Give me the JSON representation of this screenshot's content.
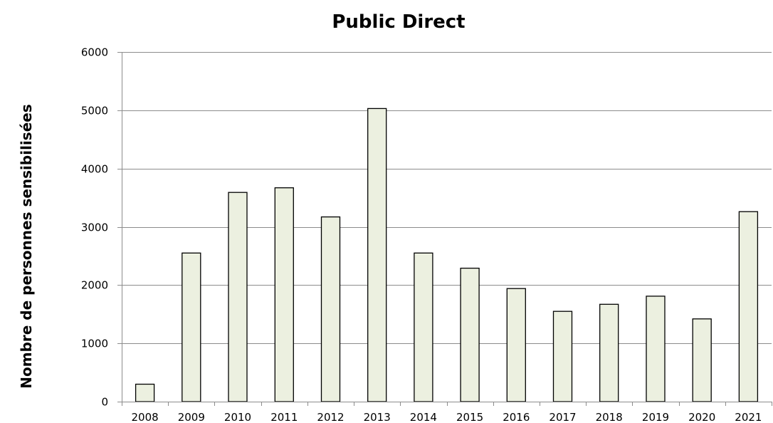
{
  "chart_data": {
    "type": "bar",
    "title": "Public Direct",
    "xlabel": "",
    "ylabel": "Nombre de personnes sensibilisées",
    "categories": [
      "2008",
      "2009",
      "2010",
      "2011",
      "2012",
      "2013",
      "2014",
      "2015",
      "2016",
      "2017",
      "2018",
      "2019",
      "2020",
      "2021"
    ],
    "values": [
      300,
      2550,
      3590,
      3670,
      3170,
      5030,
      2550,
      2290,
      1940,
      1550,
      1670,
      1810,
      1420,
      3260
    ],
    "ylim": [
      0,
      6000
    ],
    "yticks": [
      "0",
      "1000",
      "2000",
      "3000",
      "4000",
      "5000",
      "6000"
    ],
    "grid": true,
    "legend": "none",
    "colors": {
      "bar_fill": "#ecf0e0",
      "bar_stroke": "#000000",
      "grid": "#8c8c8c",
      "axis": "#8c8c8c"
    }
  }
}
